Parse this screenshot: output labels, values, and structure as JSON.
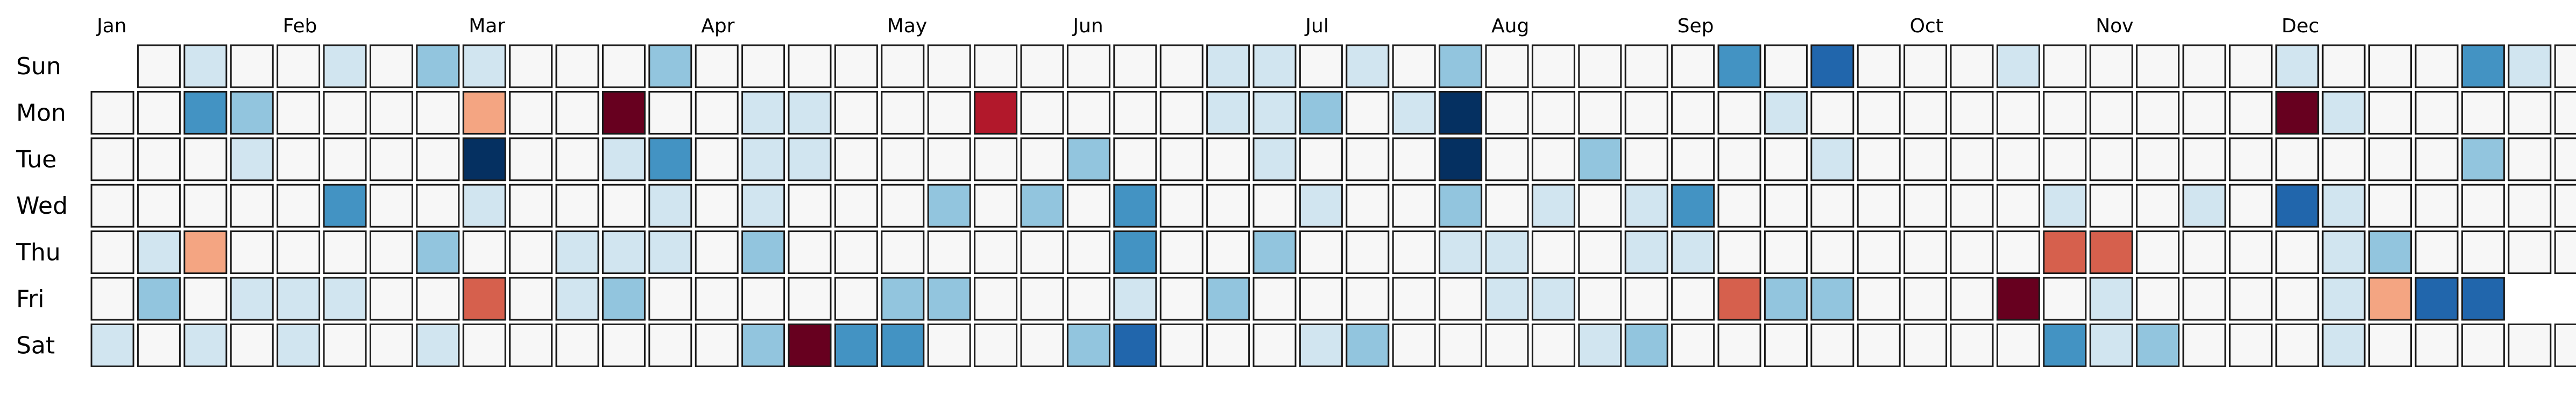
{
  "chart_data": {
    "type": "heatmap",
    "title": "",
    "xlabel": "",
    "ylabel": "",
    "legend": "none",
    "grid": false,
    "y_categories": [
      "Sun",
      "Mon",
      "Tue",
      "Wed",
      "Thu",
      "Fri",
      "Sat"
    ],
    "month_labels": [
      {
        "label": "Jan",
        "week": 0
      },
      {
        "label": "Feb",
        "week": 4
      },
      {
        "label": "Mar",
        "week": 8
      },
      {
        "label": "Apr",
        "week": 13
      },
      {
        "label": "May",
        "week": 17
      },
      {
        "label": "Jun",
        "week": 21
      },
      {
        "label": "Jul",
        "week": 26
      },
      {
        "label": "Aug",
        "week": 30
      },
      {
        "label": "Sep",
        "week": 34
      },
      {
        "label": "Oct",
        "week": 39
      },
      {
        "label": "Nov",
        "week": 43
      },
      {
        "label": "Dec",
        "week": 47
      }
    ],
    "value_range": [
      -3,
      3
    ],
    "colormap": {
      "name": "RdBu",
      "stops": [
        "#053061",
        "#2166ac",
        "#4393c3",
        "#92c5de",
        "#d1e5f0",
        "#f7f7f7",
        "#fddbc7",
        "#f4a582",
        "#d6604d",
        "#b2182b",
        "#67001f"
      ]
    },
    "values": [
      [
        null,
        0,
        -0.9,
        0,
        0,
        -0.7,
        0,
        -1.4,
        -0.8,
        0,
        -0.2,
        0,
        -1.5,
        0,
        0,
        0,
        0,
        0,
        0,
        0,
        0,
        0,
        0,
        0,
        -0.9,
        -0.4,
        0,
        -0.9,
        0,
        -1,
        0,
        -0.2,
        0,
        0,
        -0.2,
        -2.1,
        0,
        -2.4,
        0,
        0,
        0,
        -0.9,
        0,
        0,
        0,
        0,
        0,
        -0.7,
        0,
        -0.3,
        0,
        -2.1,
        -0.4,
        0
      ],
      [
        0,
        -0.2,
        -2.1,
        -1.4,
        0,
        0,
        0,
        0,
        1.4,
        0,
        0,
        3.0,
        0,
        0,
        -0.9,
        -0.9,
        0,
        0,
        0,
        2.2,
        -0.2,
        0,
        0,
        0,
        -0.9,
        -0.9,
        -1.4,
        0,
        -0.9,
        -3.0,
        0,
        0,
        0,
        0,
        0,
        0,
        -0.4,
        0,
        0,
        0,
        0,
        0,
        0,
        0,
        0,
        0,
        0,
        3.0,
        -0.9,
        0,
        0,
        0,
        0,
        0
      ],
      [
        -0.2,
        0,
        0,
        -0.8,
        0,
        0,
        0,
        0,
        -3.0,
        0,
        0,
        -0.4,
        -2.0,
        0,
        -0.9,
        -0.4,
        0,
        0,
        0,
        0,
        0,
        -1.4,
        -0.3,
        -0.2,
        0,
        -0.4,
        -0.3,
        0,
        -0.2,
        -2.7,
        0,
        0,
        -1.3,
        0,
        0,
        0,
        0,
        -0.7,
        0,
        0,
        -0.2,
        0,
        0,
        0,
        -0.2,
        0,
        0,
        0,
        0,
        0,
        0,
        -1.4,
        0,
        0
      ],
      [
        0,
        0,
        0,
        -0.2,
        0,
        -1.6,
        0,
        0,
        -0.8,
        0,
        0,
        0,
        -0.7,
        -0.2,
        -0.4,
        0,
        0,
        0,
        -1.3,
        -0.2,
        -1.3,
        0,
        -1.9,
        0,
        0,
        0,
        -0.8,
        -0.2,
        0,
        -1.3,
        0,
        -0.7,
        -0.2,
        -0.8,
        -1.9,
        0,
        0,
        0,
        0,
        0,
        0,
        0,
        -0.4,
        0,
        0,
        -0.4,
        0,
        -2.2,
        -0.8,
        0,
        0,
        0,
        -0.2,
        0
      ],
      [
        0,
        -0.8,
        1.1,
        0,
        -0.2,
        0,
        -0.2,
        -1.3,
        0,
        -0.2,
        -0.4,
        -0.8,
        -0.8,
        0,
        -1.3,
        0,
        -0.2,
        0,
        0,
        0,
        0,
        0,
        -1.9,
        -0.2,
        0,
        -1.3,
        0,
        0,
        -0.2,
        -0.4,
        -0.4,
        0,
        -0.2,
        -0.4,
        -0.8,
        0,
        0,
        0,
        0,
        0,
        -0.2,
        -0.2,
        2.0,
        2.0,
        0,
        0,
        0,
        0,
        -0.4,
        -1.4,
        -0.2,
        0,
        0,
        0
      ],
      [
        0,
        -1.4,
        0,
        -0.4,
        -0.4,
        -0.4,
        0,
        0,
        2.0,
        0,
        -0.4,
        -1.3,
        0,
        0,
        -0.2,
        0,
        0,
        -1.3,
        -1.3,
        0,
        0,
        0,
        -0.4,
        0,
        -1.3,
        0,
        0,
        0,
        0,
        0,
        -0.4,
        -0.4,
        0,
        -0.2,
        0,
        2.0,
        -1.3,
        -1.3,
        0,
        0,
        -0.2,
        3.0,
        -0.2,
        -0.4,
        0,
        0,
        0,
        0,
        -0.8,
        1.1,
        -2.2,
        -2.2,
        null,
        null
      ],
      [
        -0.7,
        0,
        -0.4,
        0,
        -0.4,
        0,
        0,
        -0.8,
        -0.2,
        0,
        0,
        0,
        0,
        0,
        -1.3,
        3.0,
        -1.7,
        -1.7,
        0,
        0,
        -0.2,
        -1.3,
        -2.3,
        -0.2,
        0,
        0,
        -0.7,
        -1.3,
        0,
        0,
        0,
        -0.2,
        -0.9,
        -1.3,
        0,
        0,
        0,
        0,
        0,
        0,
        0,
        0,
        -2.1,
        -0.4,
        -1.3,
        0,
        0,
        0,
        -0.4,
        0,
        0,
        0,
        0,
        0
      ]
    ]
  }
}
